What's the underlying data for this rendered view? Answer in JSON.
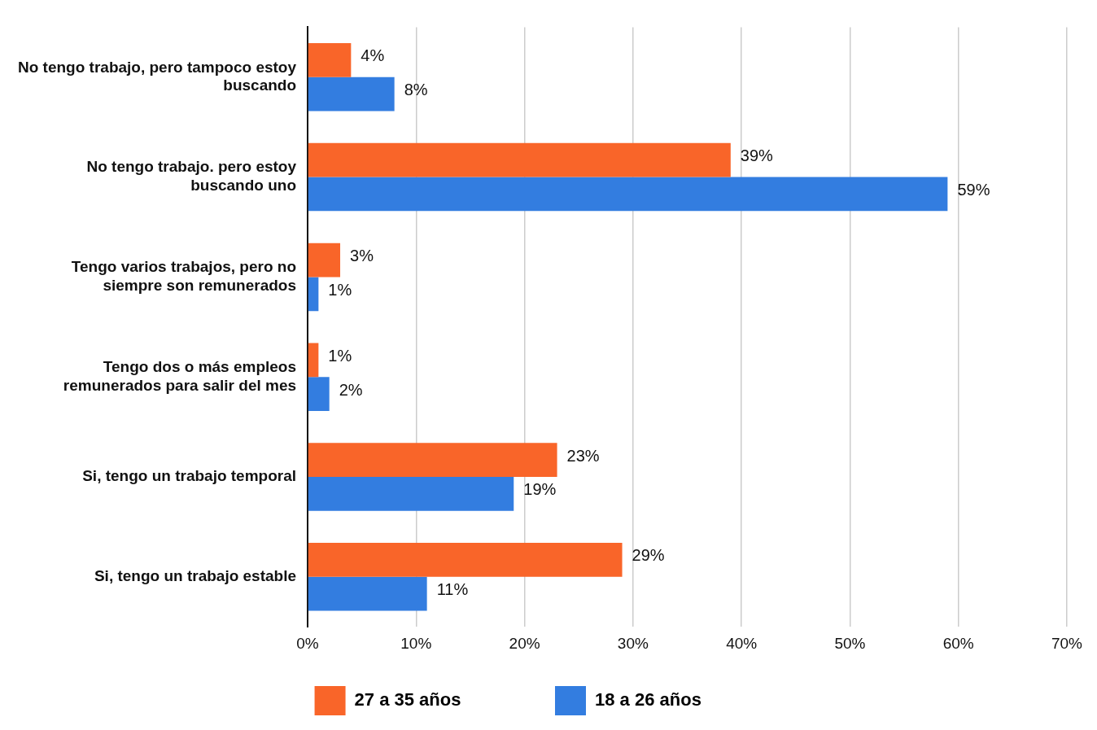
{
  "chart_data": {
    "type": "bar",
    "orientation": "horizontal",
    "categories": [
      "No tengo trabajo, pero tampoco estoy buscando",
      "No tengo trabajo. pero estoy buscando uno",
      "Tengo varios trabajos, pero no siempre son remunerados",
      "Tengo dos o más empleos remunerados para salir del mes",
      "Si, tengo un trabajo temporal",
      "Si, tengo un trabajo estable"
    ],
    "series": [
      {
        "name": "27 a 35 años",
        "color": "#f96529",
        "values": [
          4,
          39,
          3,
          1,
          23,
          29
        ],
        "value_labels": [
          "4%",
          "39%",
          "3%",
          "1%",
          "23%",
          "29%"
        ]
      },
      {
        "name": "18 a 26 años",
        "color": "#337de0",
        "values": [
          8,
          59,
          1,
          2,
          19,
          11
        ],
        "value_labels": [
          "8%",
          "59%",
          "1%",
          "2%",
          "19%",
          "11%"
        ]
      }
    ],
    "xlim": [
      0,
      70
    ],
    "xticks": [
      {
        "value": 0,
        "label": "0%"
      },
      {
        "value": 10,
        "label": "10%"
      },
      {
        "value": 20,
        "label": "20%"
      },
      {
        "value": 30,
        "label": "30%"
      },
      {
        "value": 40,
        "label": "40%"
      },
      {
        "value": 50,
        "label": "50%"
      },
      {
        "value": 60,
        "label": "60%"
      },
      {
        "value": 70,
        "label": "70%"
      }
    ],
    "grid": "x",
    "legend": "bottom"
  }
}
